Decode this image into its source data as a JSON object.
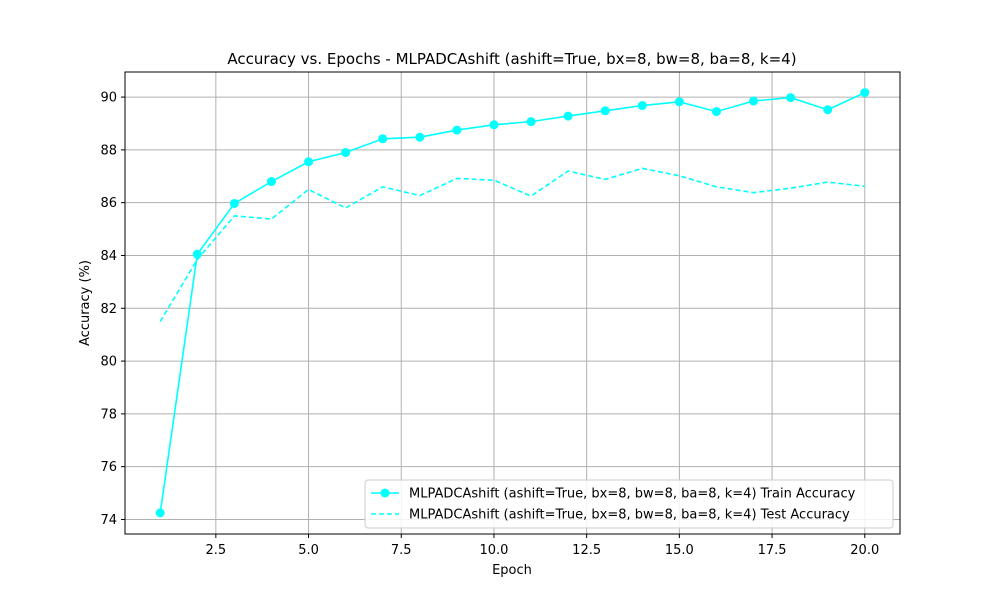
{
  "chart_data": {
    "type": "line",
    "title": "Accuracy vs. Epochs - MLPADCAshift (ashift=True, bx=8, bw=8, ba=8, k=4)",
    "xlabel": "Epoch",
    "ylabel": "Accuracy (%)",
    "xlim": [
      0.05,
      20.95
    ],
    "ylim": [
      73.45,
      90.95
    ],
    "xticks": [
      "2.5",
      "5.0",
      "7.5",
      "10.0",
      "12.5",
      "15.0",
      "17.5",
      "20.0"
    ],
    "yticks": [
      "74",
      "76",
      "78",
      "80",
      "82",
      "84",
      "86",
      "88",
      "90"
    ],
    "grid": true,
    "legend_position": "lower-right",
    "x": [
      1,
      2,
      3,
      4,
      5,
      6,
      7,
      8,
      9,
      10,
      11,
      12,
      13,
      14,
      15,
      16,
      17,
      18,
      19,
      20
    ],
    "series": [
      {
        "name": "MLPADCAshift (ashift=True, bx=8, bw=8, ba=8, k=4) Train Accuracy",
        "color": "#00ffff",
        "style": "solid-marker",
        "values": [
          74.25,
          84.05,
          85.97,
          86.8,
          87.55,
          87.9,
          88.42,
          88.48,
          88.75,
          88.95,
          89.07,
          89.28,
          89.48,
          89.68,
          89.82,
          89.45,
          89.85,
          89.98,
          89.52,
          90.17
        ]
      },
      {
        "name": "MLPADCAshift (ashift=True, bx=8, bw=8, ba=8, k=4) Test Accuracy",
        "color": "#00ffff",
        "style": "dashed",
        "values": [
          81.5,
          83.85,
          85.5,
          85.38,
          86.5,
          85.8,
          86.6,
          86.27,
          86.92,
          86.85,
          86.25,
          87.2,
          86.88,
          87.3,
          87.02,
          86.6,
          86.38,
          86.55,
          86.78,
          86.62
        ]
      }
    ]
  }
}
